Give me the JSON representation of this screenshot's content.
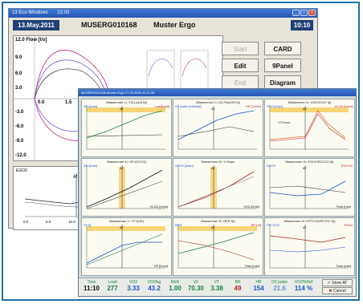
{
  "back_window": {
    "title": "13 Eco Windows",
    "title_time": "22:00",
    "date": "13.May.2011",
    "patient_id": "MUSERG010168",
    "patient_name": "Muster Ergo",
    "clock": "10:10",
    "flow_label": "12.0  Flow [l/s]",
    "flow_y_ticks": [
      "12.0",
      "9.0",
      "6.0",
      "3.0",
      "-3.0",
      "-6.0",
      "-9.0",
      "-12.0"
    ],
    "flow_x_ticks": [
      "0.0",
      "1.5"
    ],
    "ecg_label": "EGO2",
    "ecg_x_ticks": [
      "0.0",
      "5.0",
      "10.0",
      "15.0"
    ],
    "buttons": {
      "start": "Start",
      "card": "CARD",
      "edit": "Edit",
      "panel9": "9Panel",
      "end": "End",
      "diagram": "Diagram"
    }
  },
  "front_window": {
    "title": "MUSERG010168   Muster Ergo    17.02.2005 10:11:35",
    "panels": [
      {
        "title": "Wasserman 1= VE(Load) f(t)",
        "left": "VE [l/min]",
        "right": "Load[watt]",
        "marker": "AT"
      },
      {
        "title": "Wasserman 2= O2-Puls/HR f(t)",
        "left": "O2 pulse [ml/beat]",
        "right": "HR [1/min]",
        "marker": "AT"
      },
      {
        "title": "Wasserman 3= VO2/VCO2 f(t)",
        "left": "VO2 [l/min]",
        "right": "VCO2 [l/min]",
        "marker": "AT",
        "note": "VO2max"
      },
      {
        "title": "Wasserman 4= VE f(VCO2)",
        "left": "VE [l/min]",
        "right": "",
        "marker": "AT",
        "xlabel": "VCO2 [l/min]"
      },
      {
        "title": "Wasserman 5= V-Slope",
        "left": "VCO2 [l/min]",
        "right": "",
        "marker": "AT",
        "xlabel": "VO2 [l/min]"
      },
      {
        "title": "Wasserman 6= EGO2/EGCO2 f(t)",
        "left": "EGO2",
        "right": "EGCO2",
        "marker": "AT",
        "xlabel": "Time [min]"
      },
      {
        "title": "Wasserman 7= VT f(VE)",
        "left": "VT [l]",
        "right": "",
        "marker": "AT",
        "xlabel": "VE [l/min]"
      },
      {
        "title": "Wasserman 8= RER f(t)",
        "left": "RER",
        "right": "BR [%]",
        "marker": "AT",
        "xlabel": "Time [min]"
      },
      {
        "title": "Wasserman 9= PETCO2/PETO2 f(t)",
        "left": "PETCO2",
        "right": "PaO2",
        "marker": "AT",
        "xlabel": "Time [min]"
      }
    ],
    "bottom_bar": [
      {
        "label": "Time",
        "value": "11:10",
        "color": "#111111"
      },
      {
        "label": "Load",
        "value": "277",
        "color": "#15803d"
      },
      {
        "label": "VO2",
        "value": "3.33",
        "color": "#1d4ed8"
      },
      {
        "label": "VO2/kg",
        "value": "43.2",
        "color": "#1d4ed8"
      },
      {
        "label": "RER",
        "value": "1.00",
        "color": "#15803d"
      },
      {
        "label": "VE",
        "value": "70.30",
        "color": "#15803d"
      },
      {
        "label": "VT",
        "value": "3.38",
        "color": "#15803d"
      },
      {
        "label": "BR",
        "value": "49",
        "color": "#b91c1c"
      },
      {
        "label": "HR",
        "value": "154",
        "color": "#1d4ed8"
      },
      {
        "label": "O2 pulse",
        "value": "21.6",
        "color": "#6b8dd6"
      },
      {
        "label": "VO2%Ref",
        "value": "114 %",
        "color": "#1d4ed8"
      }
    ],
    "store_label": "Store AT",
    "cancel_label": "Cancel"
  },
  "colors": {
    "accent": "#1f3f76",
    "frame": "#1d6fa8",
    "at_band": "#f5c542"
  }
}
